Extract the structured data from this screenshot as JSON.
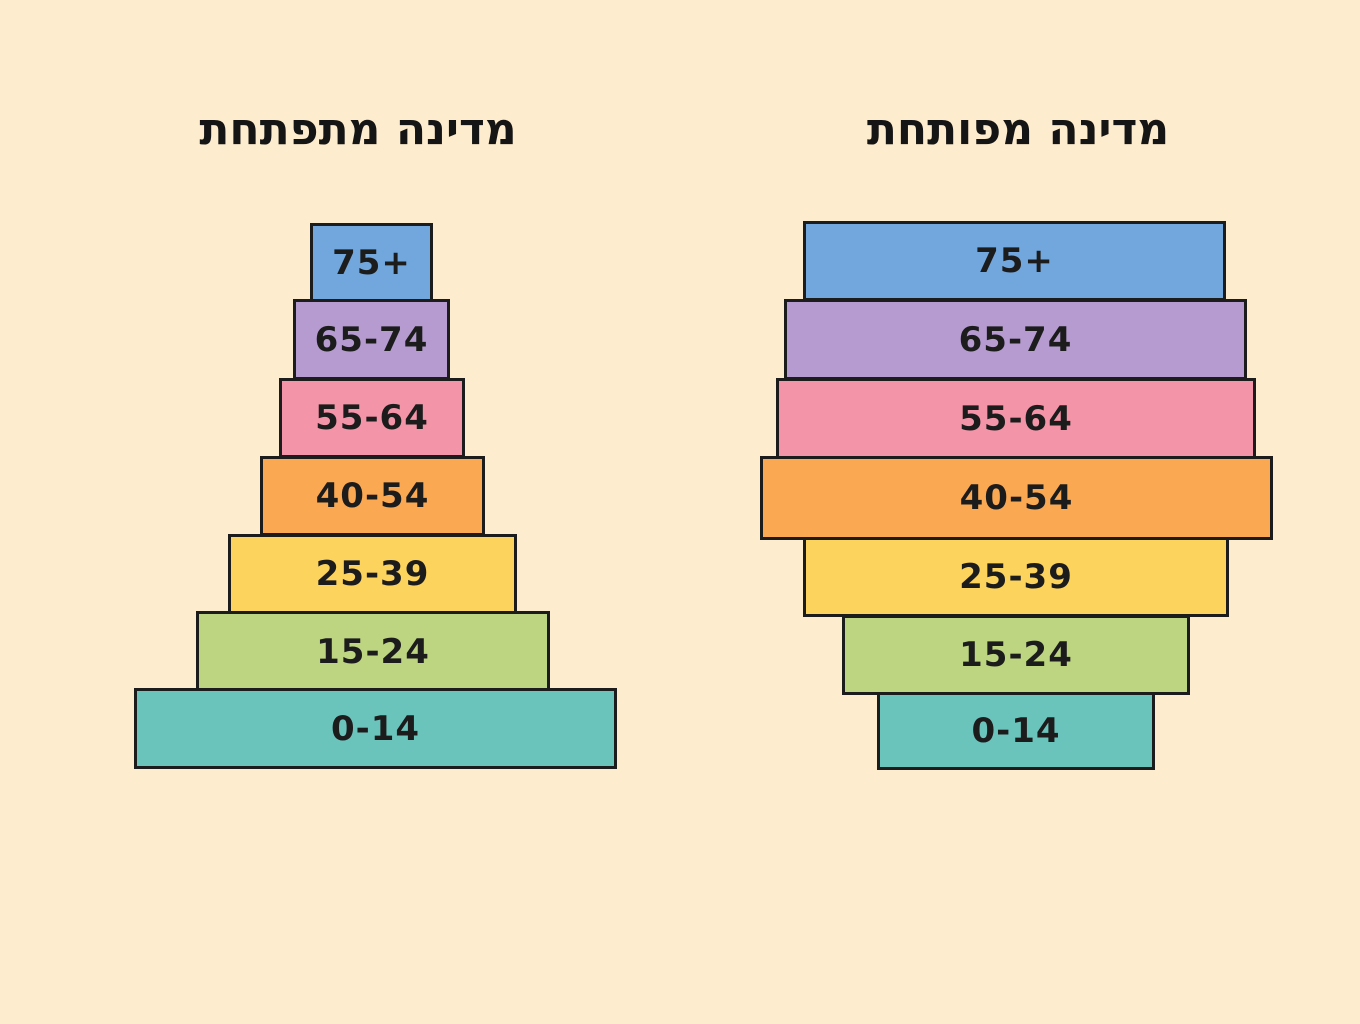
{
  "colors": {
    "background": "#fdeccd",
    "75+": "#72a7dd",
    "65-74": "#b59bd0",
    "55-64": "#f494a8",
    "40-54": "#fba852",
    "25-39": "#fcd35c",
    "15-24": "#bdd581",
    "0-14": "#6bc4bc"
  },
  "pyramids": [
    {
      "title": "מדינה מתפתחת",
      "age_groups": [
        "75+",
        "65-74",
        "55-64",
        "40-54",
        "25-39",
        "15-24",
        "0-14"
      ]
    },
    {
      "title": "מדינה מפותחת",
      "age_groups": [
        "75+",
        "65-74",
        "55-64",
        "40-54",
        "25-39",
        "15-24",
        "0-14"
      ]
    }
  ]
}
